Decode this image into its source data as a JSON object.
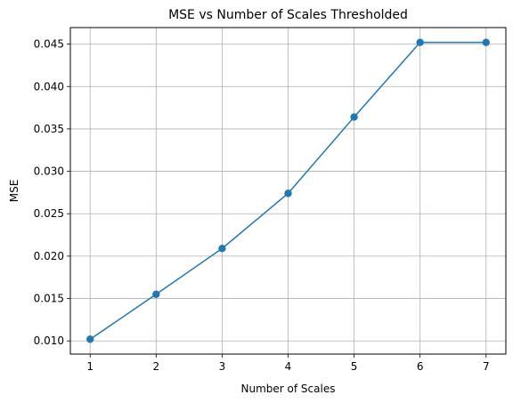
{
  "chart_data": {
    "type": "line",
    "title": "MSE vs Number of Scales Thresholded",
    "xlabel": "Number of Scales",
    "ylabel": "MSE",
    "x": [
      1,
      2,
      3,
      4,
      5,
      6,
      7
    ],
    "series": [
      {
        "values": [
          0.0102,
          0.0155,
          0.0209,
          0.0274,
          0.0364,
          0.0452,
          0.0452
        ]
      }
    ],
    "xticks": [
      "1",
      "2",
      "3",
      "4",
      "5",
      "6",
      "7"
    ],
    "yticks": [
      "0.010",
      "0.015",
      "0.020",
      "0.025",
      "0.030",
      "0.035",
      "0.040",
      "0.045"
    ],
    "xlim": [
      0.7,
      7.3
    ],
    "ylim": [
      0.00845,
      0.04695
    ],
    "grid": true,
    "marker": "circle",
    "line_color": "#1f77b4",
    "grid_color": "#b0b0b0"
  }
}
